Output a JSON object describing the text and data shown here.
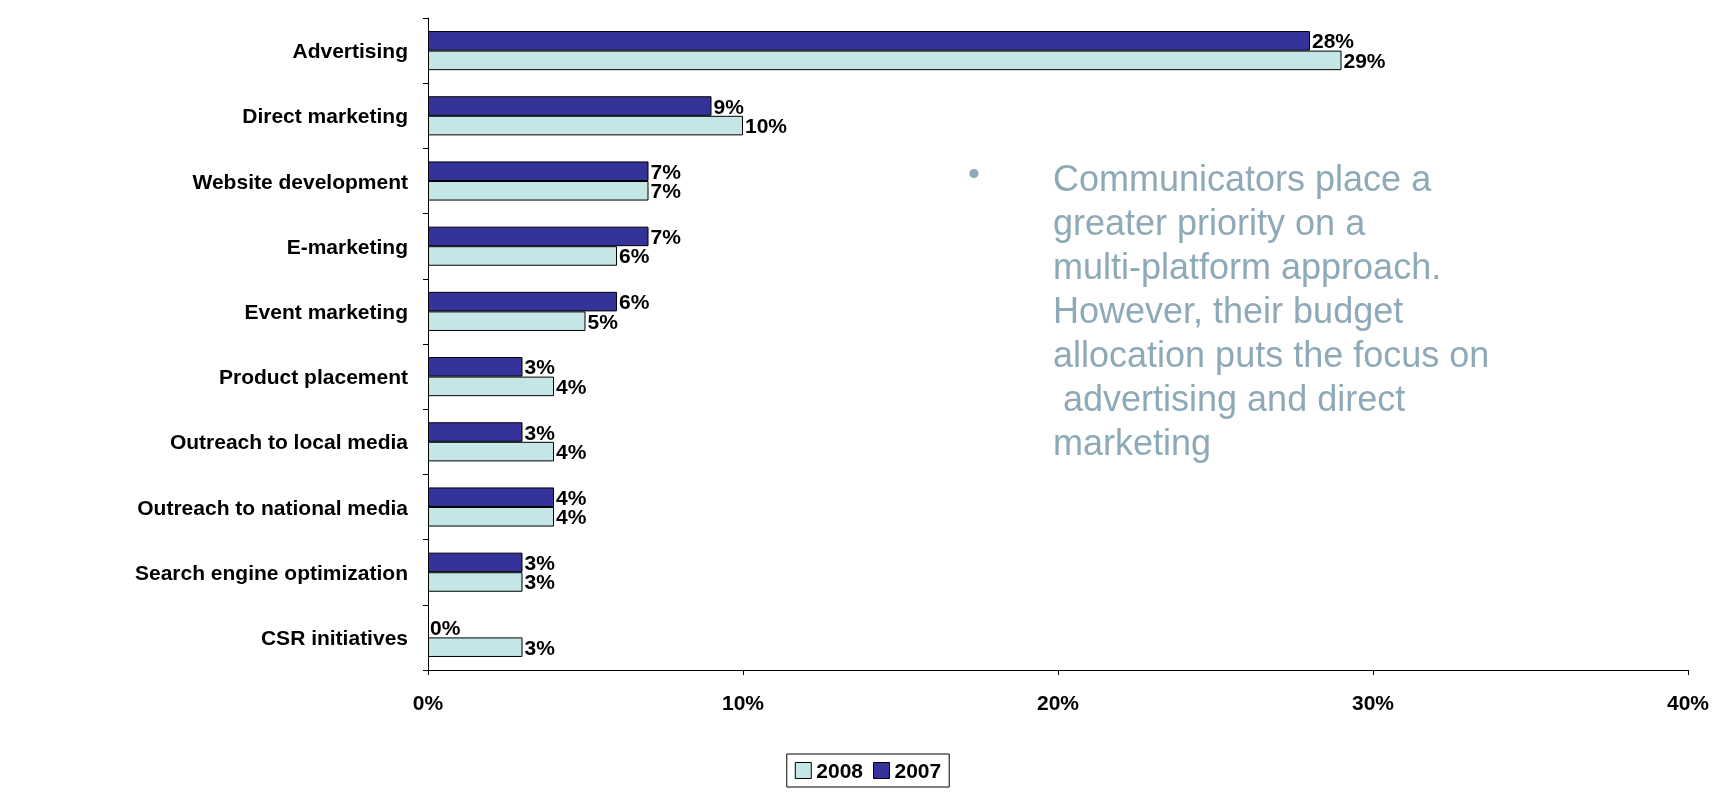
{
  "chart_data": {
    "type": "bar",
    "orientation": "horizontal",
    "categories": [
      "Advertising",
      "Direct marketing",
      "Website development",
      "E-marketing",
      "Event marketing",
      "Product placement",
      "Outreach to local media",
      "Outreach to national media",
      "Search engine optimization",
      "CSR initiatives"
    ],
    "series": [
      {
        "name": "2007",
        "color": "#333399",
        "values": [
          28,
          9,
          7,
          7,
          6,
          3,
          3,
          4,
          3,
          0
        ],
        "value_labels": [
          "28%",
          "9%",
          "7%",
          "7%",
          "6%",
          "3%",
          "3%",
          "4%",
          "3%",
          "0%"
        ]
      },
      {
        "name": "2008",
        "color": "#c4e6e6",
        "values": [
          29,
          10,
          7,
          6,
          5,
          4,
          4,
          4,
          3,
          3
        ],
        "value_labels": [
          "29%",
          "10%",
          "7%",
          "6%",
          "5%",
          "4%",
          "4%",
          "4%",
          "3%",
          "3%"
        ]
      }
    ],
    "xlim": [
      0,
      40
    ],
    "xticks": [
      {
        "value": 0,
        "label": "0%"
      },
      {
        "value": 10,
        "label": "10%"
      },
      {
        "value": 20,
        "label": "20%"
      },
      {
        "value": 30,
        "label": "30%"
      },
      {
        "value": 40,
        "label": "40%"
      }
    ],
    "grid": false,
    "legend": "bottom",
    "annotations": [
      "• Communicators place a greater priority on a multi-platform approach. However, their budget allocation puts the focus on advertising and direct marketing"
    ]
  }
}
